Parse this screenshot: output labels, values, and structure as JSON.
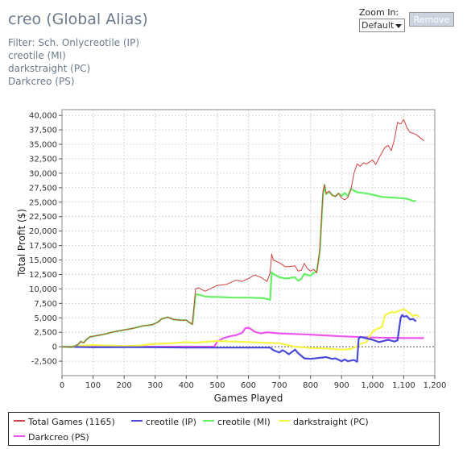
{
  "header": {
    "title": "creo (Global Alias)",
    "filter_lines": [
      "Filter: Sch. Onlycreotile (IP)",
      "creotile (MI)",
      "darkstraight (PC)",
      "Darkcreo (PS)"
    ]
  },
  "controls": {
    "zoom_label": "Zoom In:",
    "zoom_value": "Default",
    "remove_label": "Remove"
  },
  "colors": {
    "total": "#d04040",
    "ip": "#4a4ad8",
    "mi": "#66f066",
    "pc": "#f5f545",
    "ps": "#ee55ee"
  },
  "chart_data": {
    "type": "line",
    "xlabel": "Games Played",
    "ylabel": "Total Profit ($)",
    "xlim": [
      0,
      1200
    ],
    "ylim": [
      -5000,
      41000
    ],
    "xticks": [
      0,
      100,
      200,
      300,
      400,
      500,
      600,
      700,
      800,
      900,
      1000,
      1100,
      1200
    ],
    "xtick_labels": [
      "0",
      "100",
      "200",
      "300",
      "400",
      "500",
      "600",
      "700",
      "800",
      "900",
      "1,000",
      "1,100",
      "1,200"
    ],
    "yticks": [
      -2500,
      0,
      2500,
      5000,
      7500,
      10000,
      12500,
      15000,
      17500,
      20000,
      22500,
      25000,
      27500,
      30000,
      32500,
      35000,
      37500,
      40000
    ],
    "ytick_labels": [
      "-2,500",
      "0",
      "2,500",
      "5,000",
      "7,500",
      "10,000",
      "12,500",
      "15,000",
      "17,500",
      "20,000",
      "22,500",
      "25,000",
      "27,500",
      "30,000",
      "32,500",
      "35,000",
      "37,500",
      "40,000"
    ],
    "grid": true,
    "legend_position": "bottom",
    "series": [
      {
        "name": "Total Games (1165)",
        "color_key": "total",
        "x": [
          0,
          30,
          50,
          60,
          70,
          80,
          90,
          100,
          120,
          140,
          160,
          180,
          200,
          230,
          260,
          290,
          310,
          320,
          340,
          360,
          380,
          400,
          410,
          420,
          430,
          440,
          460,
          480,
          500,
          530,
          560,
          580,
          600,
          620,
          640,
          660,
          670,
          675,
          680,
          700,
          720,
          750,
          760,
          770,
          780,
          790,
          800,
          810,
          820,
          830,
          840,
          845,
          850,
          860,
          870,
          880,
          890,
          900,
          910,
          920,
          930,
          940,
          950,
          960,
          970,
          980,
          1000,
          1010,
          1020,
          1030,
          1040,
          1050,
          1060,
          1070,
          1080,
          1090,
          1100,
          1110,
          1120,
          1140,
          1165
        ],
        "y": [
          0,
          -100,
          300,
          900,
          700,
          1300,
          1700,
          1800,
          2000,
          2200,
          2500,
          2700,
          2900,
          3200,
          3600,
          3800,
          4300,
          4800,
          5100,
          4700,
          4600,
          4600,
          4200,
          3900,
          10000,
          10200,
          9600,
          10100,
          10600,
          10800,
          11500,
          11300,
          11800,
          12400,
          12000,
          11300,
          12800,
          16000,
          15000,
          14500,
          13800,
          14000,
          13100,
          13200,
          14400,
          13500,
          13100,
          13400,
          12800,
          16800,
          26800,
          28000,
          26500,
          26900,
          26200,
          26000,
          26500,
          25700,
          25400,
          25800,
          27200,
          30000,
          31600,
          31200,
          31800,
          31600,
          32300,
          31500,
          32600,
          33600,
          34500,
          34800,
          33900,
          35800,
          38800,
          38500,
          39300,
          37900,
          37100,
          36700,
          35600
        ]
      },
      {
        "name": "creotile (IP)",
        "color_key": "ip",
        "x": [
          0,
          100,
          200,
          300,
          400,
          500,
          600,
          670,
          680,
          690,
          700,
          710,
          720,
          730,
          750,
          760,
          780,
          800,
          850,
          870,
          880,
          900,
          910,
          920,
          930,
          940,
          950,
          955,
          960,
          1000,
          1020,
          1050,
          1070,
          1080,
          1090,
          1095,
          1100,
          1110,
          1120,
          1130,
          1140
        ],
        "y": [
          0,
          -100,
          -80,
          -100,
          -150,
          -150,
          -150,
          -150,
          -600,
          -800,
          -1000,
          -600,
          -900,
          -1300,
          -500,
          -1100,
          -2000,
          -2100,
          -1800,
          -2100,
          -2000,
          -2500,
          -2200,
          -2500,
          -2400,
          -2300,
          -2600,
          1400,
          1700,
          1200,
          800,
          1200,
          900,
          1100,
          5000,
          5500,
          5200,
          5300,
          4700,
          4800,
          4400
        ]
      },
      {
        "name": "creotile (MI)",
        "color_key": "mi",
        "x": [
          0,
          30,
          50,
          60,
          70,
          80,
          90,
          100,
          120,
          140,
          160,
          180,
          200,
          230,
          260,
          290,
          310,
          320,
          340,
          360,
          380,
          400,
          410,
          420,
          430,
          440,
          460,
          480,
          500,
          550,
          600,
          650,
          670,
          675,
          680,
          700,
          720,
          750,
          760,
          770,
          780,
          790,
          800,
          810,
          820,
          830,
          840,
          845,
          850,
          860,
          870,
          880,
          890,
          900,
          910,
          920,
          930,
          950,
          970,
          1000,
          1030,
          1060,
          1090,
          1110,
          1130,
          1140
        ],
        "y": [
          0,
          -100,
          300,
          900,
          700,
          1300,
          1700,
          1800,
          2000,
          2200,
          2500,
          2700,
          2900,
          3200,
          3600,
          3800,
          4300,
          4800,
          5100,
          4700,
          4600,
          4600,
          4200,
          3900,
          9100,
          9000,
          8700,
          8600,
          8600,
          8500,
          8500,
          8400,
          8100,
          12900,
          12600,
          12000,
          11800,
          12000,
          11400,
          11700,
          12600,
          12400,
          12300,
          12800,
          13000,
          16500,
          26200,
          28000,
          26400,
          26800,
          26200,
          26000,
          26500,
          26100,
          26600,
          26000,
          27300,
          26700,
          26600,
          26300,
          25900,
          25800,
          25700,
          25600,
          25200,
          25200
        ]
      },
      {
        "name": "darkstraight (PC)",
        "color_key": "pc",
        "x": [
          0,
          50,
          100,
          150,
          200,
          250,
          300,
          350,
          400,
          430,
          450,
          500,
          550,
          600,
          650,
          700,
          750,
          800,
          850,
          900,
          930,
          950,
          960,
          980,
          990,
          1000,
          1010,
          1030,
          1040,
          1060,
          1070,
          1080,
          1090,
          1100,
          1110,
          1120,
          1130,
          1140,
          1150
        ],
        "y": [
          0,
          100,
          300,
          200,
          100,
          200,
          500,
          600,
          800,
          700,
          800,
          1000,
          900,
          800,
          700,
          600,
          0,
          -200,
          -300,
          -500,
          -400,
          100,
          500,
          800,
          1800,
          2600,
          3000,
          3400,
          5500,
          6000,
          5900,
          6100,
          6300,
          6500,
          6200,
          5800,
          5300,
          5500,
          5200
        ]
      },
      {
        "name": "Darkcreo (PS)",
        "color_key": "ps",
        "x": [
          0,
          100,
          200,
          300,
          400,
          470,
          490,
          500,
          520,
          540,
          560,
          580,
          590,
          600,
          610,
          620,
          640,
          660,
          700,
          800,
          900,
          1000,
          1100,
          1165
        ],
        "y": [
          0,
          0,
          0,
          0,
          0,
          0,
          0,
          900,
          1500,
          1800,
          2000,
          2400,
          3200,
          3300,
          3000,
          2600,
          2300,
          2500,
          2300,
          2100,
          1800,
          1600,
          1500,
          1500
        ]
      }
    ]
  }
}
